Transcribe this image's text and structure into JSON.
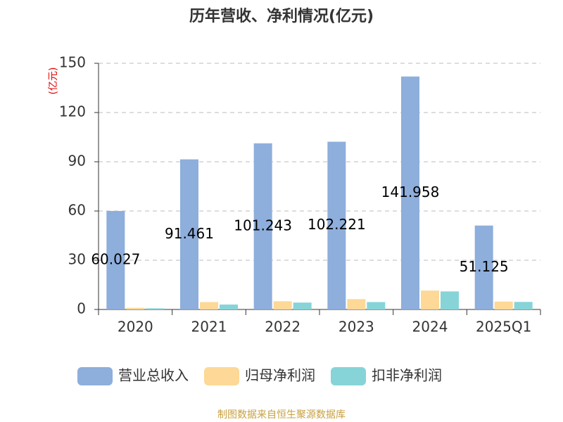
{
  "chart_data": {
    "type": "bar",
    "title": "历年营收、净利情况(亿元)",
    "y_label": "(亿元)",
    "categories": [
      "2020",
      "2021",
      "2022",
      "2023",
      "2024",
      "2025Q1"
    ],
    "series": [
      {
        "name": "营业总收入",
        "color": "#8eaedc",
        "values": [
          60.027,
          91.461,
          101.243,
          102.221,
          141.958,
          51.125
        ],
        "show_labels": true
      },
      {
        "name": "归母净利润",
        "color": "#fdd896",
        "values": [
          1.0,
          4.5,
          5.0,
          6.3,
          11.5,
          4.8
        ]
      },
      {
        "name": "扣非净利润",
        "color": "#86d4d8",
        "values": [
          0.7,
          3.0,
          4.2,
          4.5,
          11.0,
          4.6
        ]
      }
    ],
    "ylim": [
      0,
      150
    ],
    "yticks": [
      0,
      30,
      60,
      90,
      120,
      150
    ],
    "grid": true,
    "source": "制图数据来自恒生聚源数据库"
  }
}
